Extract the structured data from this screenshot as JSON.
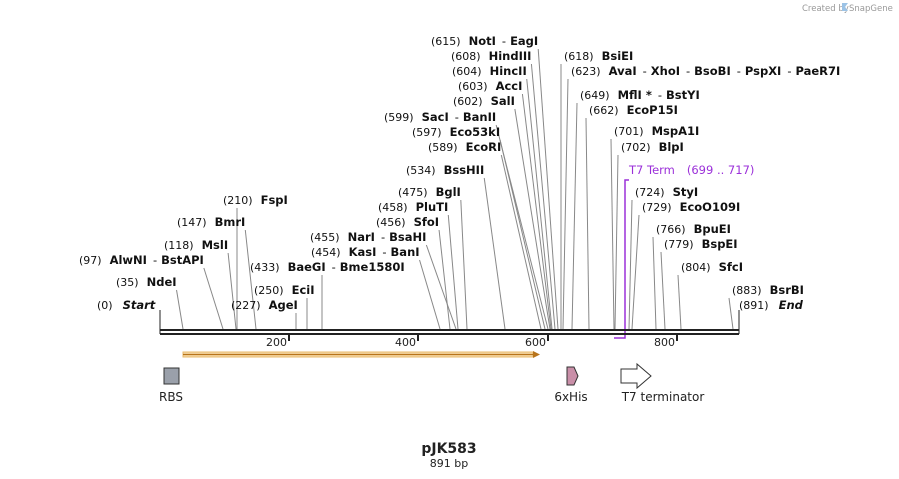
{
  "credit": {
    "text": "Created by",
    "brand": "SnapGene"
  },
  "plasmid": {
    "name": "pJK583",
    "size": "891 bp"
  },
  "axis_ticks": [
    "200",
    "400",
    "600",
    "800"
  ],
  "enzymes": [
    {
      "pos": "(0)",
      "name": "Start",
      "italic": true
    },
    {
      "pos": "(35)",
      "name": "NdeI"
    },
    {
      "pos": "(97)",
      "name": "AlwNI",
      "alt": [
        "BstAPI"
      ]
    },
    {
      "pos": "(118)",
      "name": "MslI"
    },
    {
      "pos": "(147)",
      "name": "BmrI"
    },
    {
      "pos": "(210)",
      "name": "FspI"
    },
    {
      "pos": "(227)",
      "name": "AgeI"
    },
    {
      "pos": "(250)",
      "name": "EciI"
    },
    {
      "pos": "(433)",
      "name": "BaeGI",
      "alt": [
        "Bme1580I"
      ]
    },
    {
      "pos": "(454)",
      "name": "KasI",
      "alt": [
        "BanI"
      ]
    },
    {
      "pos": "(455)",
      "name": "NarI",
      "alt": [
        "BsaHI"
      ]
    },
    {
      "pos": "(456)",
      "name": "SfoI"
    },
    {
      "pos": "(458)",
      "name": "PluTI"
    },
    {
      "pos": "(475)",
      "name": "BglI"
    },
    {
      "pos": "(534)",
      "name": "BssHII"
    },
    {
      "pos": "(589)",
      "name": "EcoRI"
    },
    {
      "pos": "(597)",
      "name": "Eco53kI"
    },
    {
      "pos": "(599)",
      "name": "SacI",
      "alt": [
        "BanII"
      ]
    },
    {
      "pos": "(602)",
      "name": "SalI"
    },
    {
      "pos": "(603)",
      "name": "AccI"
    },
    {
      "pos": "(604)",
      "name": "HincII"
    },
    {
      "pos": "(608)",
      "name": "HindIII"
    },
    {
      "pos": "(615)",
      "name": "NotI",
      "alt": [
        "EagI"
      ]
    },
    {
      "pos": "(618)",
      "name": "BsiEI"
    },
    {
      "pos": "(623)",
      "name": "AvaI",
      "alt": [
        "XhoI",
        "BsoBI",
        "PspXI",
        "PaeR7I"
      ]
    },
    {
      "pos": "(649)",
      "name": "MflI *",
      "alt": [
        "BstYI"
      ]
    },
    {
      "pos": "(662)",
      "name": "EcoP15I"
    },
    {
      "pos": "(701)",
      "name": "MspA1I"
    },
    {
      "pos": "(702)",
      "name": "BlpI"
    },
    {
      "pos": "(724)",
      "name": "StyI"
    },
    {
      "pos": "(729)",
      "name": "EcoO109I"
    },
    {
      "pos": "(766)",
      "name": "BpuEI"
    },
    {
      "pos": "(779)",
      "name": "BspEI"
    },
    {
      "pos": "(804)",
      "name": "SfcI"
    },
    {
      "pos": "(883)",
      "name": "BsrBI"
    },
    {
      "pos": "(891)",
      "name": "End",
      "italic": true
    }
  ],
  "t7_term": {
    "name": "T7 Term",
    "range": "(699 .. 717)"
  },
  "features": [
    {
      "name": "RBS"
    },
    {
      "name": "6xHis"
    },
    {
      "name": "T7 terminator"
    }
  ]
}
